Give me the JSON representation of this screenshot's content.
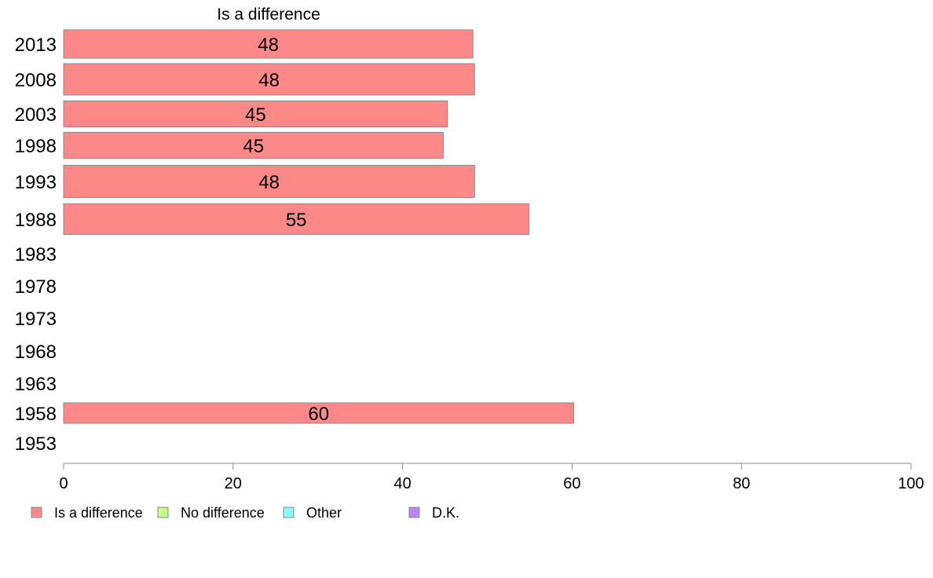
{
  "chart_data": {
    "type": "bar",
    "orientation": "horizontal",
    "title": "Is a difference",
    "xlabel": "",
    "ylabel": "",
    "categories": [
      "2013",
      "2008",
      "2003",
      "1998",
      "1993",
      "1988",
      "1983",
      "1978",
      "1973",
      "1968",
      "1963",
      "1958",
      "1953"
    ],
    "series": [
      {
        "name": "Is a difference",
        "color": "#ff8888",
        "values": [
          48.3,
          48.5,
          45.3,
          44.8,
          48.5,
          54.9,
          null,
          null,
          null,
          null,
          null,
          60.2,
          null
        ],
        "labels": [
          "48",
          "48",
          "45",
          "45",
          "48",
          "55",
          "",
          "",
          "",
          "",
          "",
          "60",
          ""
        ]
      }
    ],
    "xlim": [
      0,
      100
    ],
    "xticks": [
      "0",
      "20",
      "40",
      "60",
      "80",
      "100"
    ],
    "grid": false,
    "legend_position": "bottom-left",
    "legend": [
      {
        "label": "Is a difference",
        "color": "#ff8888"
      },
      {
        "label": "No difference",
        "color": "#c8f888"
      },
      {
        "label": "Other",
        "color": "#88f8f8"
      },
      {
        "label": "D.K.",
        "color": "#b888f8"
      }
    ]
  }
}
